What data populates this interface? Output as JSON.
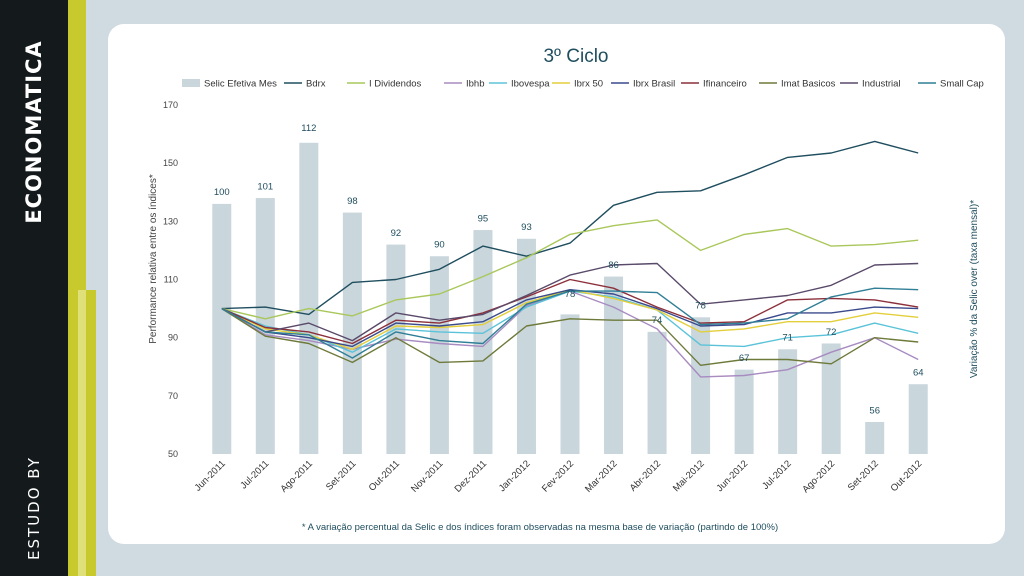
{
  "brand": {
    "name": "ECONOMATICA",
    "study_label": "ESTUDO BY"
  },
  "chart_data": {
    "type": "bar+line",
    "title": "3º Ciclo",
    "categories": [
      "Jun-2011",
      "Jul-2011",
      "Ago-2011",
      "Set-2011",
      "Out-2011",
      "Nov-2011",
      "Dez-2011",
      "Jan-2012",
      "Fev-2012",
      "Mar-2012",
      "Abr-2012",
      "Mai-2012",
      "Jun-2012",
      "Jul-2012",
      "Ago-2012",
      "Set-2012",
      "Out-2012"
    ],
    "ylabel_left": "Performance relativa entre os índices*",
    "ylabel_right": "Variação % da Selic over (taxa mensal)*",
    "ylim_left": [
      50,
      170
    ],
    "yticks_left": [
      50,
      70,
      90,
      110,
      130,
      150,
      170
    ],
    "footnote": "* A variação percentual da Selic e dos índices foram observadas na mesma base de variação (partindo de 100%)",
    "bars": {
      "name": "Selic Efetiva Mes",
      "color": "#c9d6dc",
      "labels": [
        "100",
        "101",
        "112",
        "98",
        "92",
        "90",
        "95",
        "93",
        "78",
        "86",
        "74",
        "78",
        "67",
        "71",
        "72",
        "56",
        "64"
      ],
      "values": [
        100,
        101,
        112,
        98,
        92,
        90,
        95,
        93,
        78,
        86,
        74,
        78,
        67,
        71,
        72,
        56,
        64
      ],
      "heights_left_axis": [
        136,
        138,
        157,
        133,
        122,
        118,
        127,
        124,
        98,
        111,
        92,
        97,
        79,
        86,
        88,
        61,
        74
      ],
      "label_values_left_axis": [
        139,
        141,
        161,
        136,
        125,
        121,
        130,
        127,
        104,
        114,
        95,
        100,
        82,
        89,
        91,
        64,
        77
      ]
    },
    "series": [
      {
        "name": "Bdrx",
        "color": "#1f4e5f",
        "values": [
          100,
          100.5,
          98,
          109,
          110,
          113.5,
          121.5,
          118,
          122.5,
          135.5,
          140,
          140.5,
          146,
          152,
          153.5,
          157.5,
          153.5
        ]
      },
      {
        "name": "I Dividendos",
        "color": "#a9c75a",
        "values": [
          100,
          96.5,
          100,
          97.5,
          103,
          105,
          111,
          117.5,
          125.5,
          128.5,
          130.5,
          120,
          125.5,
          127.5,
          121.5,
          122,
          123.5
        ]
      },
      {
        "name": "Ibhb",
        "color": "#a88bc0",
        "values": [
          100,
          91,
          89,
          86,
          89.5,
          88,
          87,
          101,
          106,
          100.5,
          93,
          76.5,
          77,
          79,
          85,
          90,
          82.5
        ]
      },
      {
        "name": "Ibovespa",
        "color": "#5bc3d9",
        "values": [
          100,
          94,
          91,
          85,
          93,
          92,
          91.5,
          100.5,
          106,
          104,
          99.5,
          87.5,
          87,
          90,
          91,
          95,
          91.5
        ]
      },
      {
        "name": "Ibrx 50",
        "color": "#e3cf3b",
        "values": [
          100,
          93,
          91,
          86,
          94,
          93.5,
          94.5,
          102,
          106.5,
          103.5,
          99.5,
          92,
          93,
          95.5,
          95.5,
          98.5,
          97
        ]
      },
      {
        "name": "Ibrx Brasil",
        "color": "#3a4a8c",
        "values": [
          100,
          92,
          90,
          87,
          95,
          94,
          95.5,
          103,
          106.5,
          105,
          100,
          94,
          94.5,
          98.5,
          98.5,
          100.5,
          100
        ]
      },
      {
        "name": "Ifinanceiro",
        "color": "#8c2f3a",
        "values": [
          100,
          93.5,
          92,
          88,
          96,
          95,
          98.5,
          104,
          110,
          107,
          100.5,
          95,
          95.5,
          103,
          103.5,
          103,
          100.5
        ]
      },
      {
        "name": "Imat Basicos",
        "color": "#6e7a3a",
        "values": [
          100,
          90.5,
          88,
          81.5,
          90,
          81.5,
          82,
          94,
          96.5,
          96,
          96,
          80.5,
          82.5,
          82.5,
          81,
          90,
          88.5
        ]
      },
      {
        "name": "Industrial",
        "color": "#5a4a6a",
        "values": [
          100,
          92,
          95,
          89,
          98.5,
          96,
          98,
          104.5,
          111.5,
          115,
          115.5,
          101.5,
          103,
          104.5,
          108,
          115,
          115.5
        ]
      },
      {
        "name": "Small Cap",
        "color": "#2f7f96",
        "values": [
          100,
          92,
          91,
          83,
          92,
          89,
          88,
          101.5,
          106,
          106,
          105.5,
          94.5,
          95,
          96.5,
          104,
          107,
          106.5
        ]
      }
    ]
  }
}
